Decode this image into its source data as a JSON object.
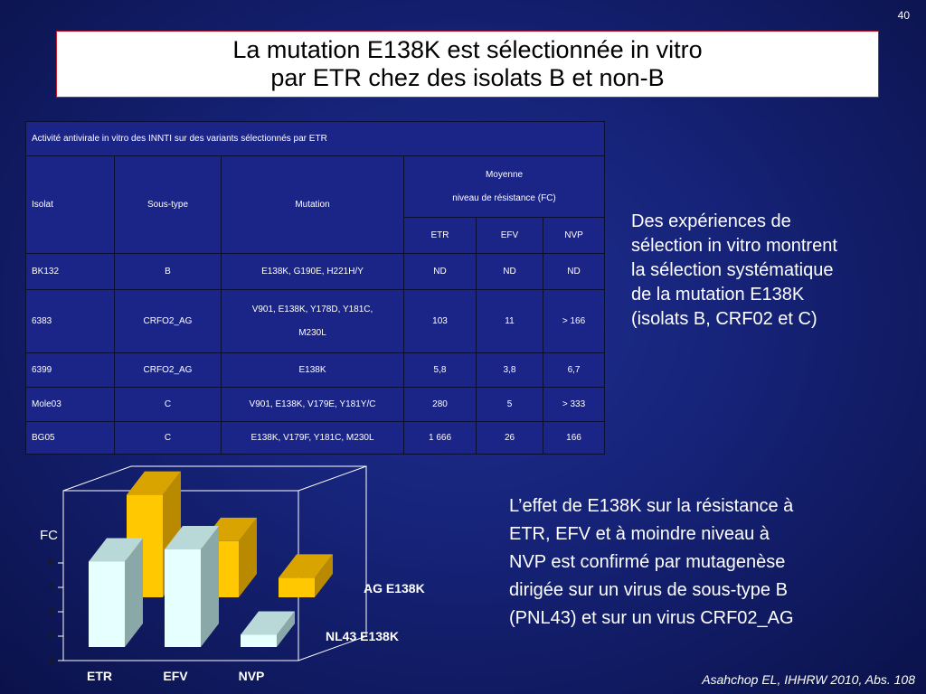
{
  "page_number": "40",
  "title": {
    "line1": "La mutation E138K est sélectionnée in vitro",
    "line2": "par ETR chez des isolats B et non-B"
  },
  "table": {
    "caption": "Activité antivirale in vitro des INNTI sur des variants sélectionnés par ETR",
    "headers": {
      "isolat": "Isolat",
      "sous_type": "Sous-type",
      "mutation": "Mutation",
      "moyenne_line1": "Moyenne",
      "moyenne_line2": "niveau de résistance (FC)",
      "etr": "ETR",
      "efv": "EFV",
      "nvp": "NVP"
    },
    "rows": [
      {
        "isolat": "BK132",
        "sous_type": "B",
        "mutation": "E138K, G190E, H221H/Y",
        "etr": "ND",
        "efv": "ND",
        "nvp": "ND"
      },
      {
        "isolat": "6383",
        "sous_type": "CRFO2_AG",
        "mutation_line1": "V901, E138K, Y178D, Y181C,",
        "mutation_line2": "M230L",
        "etr": "103",
        "efv": "11",
        "nvp": "> 166"
      },
      {
        "isolat": "6399",
        "sous_type": "CRFO2_AG",
        "mutation": "E138K",
        "etr": "5,8",
        "efv": "3,8",
        "nvp": "6,7"
      },
      {
        "isolat": "Mole03",
        "sous_type": "C",
        "mutation": "V901, E138K, V179E, Y181Y/C",
        "etr": "280",
        "efv": "5",
        "nvp": "> 333"
      },
      {
        "isolat": "BG05",
        "sous_type": "C",
        "mutation": "E138K, V179F, Y181C, M230L",
        "etr": "1 666",
        "efv": "26",
        "nvp": "166"
      }
    ]
  },
  "text_right_1": {
    "lines": [
      "Des expériences de",
      "sélection in vitro montrent",
      "la sélection systématique",
      "de la mutation E138K",
      "(isolats B, CRF02 et C)"
    ]
  },
  "text_right_2": {
    "lines": [
      "L’effet de E138K sur la résistance à",
      "ETR, EFV et à moindre niveau à",
      "NVP est confirmé par mutagenèse",
      "dirigée sur un virus de sous-type B",
      "(PNL43) et sur un virus CRF02_AG"
    ]
  },
  "citation": "Asahchop EL, IHHRW 2010, Abs. 108",
  "colors": {
    "ag_bar_front": "#ffc800",
    "ag_bar_top": "#d9a400",
    "ag_bar_side": "#b98a00",
    "nl43_bar_front": "#e6ffff",
    "nl43_bar_top": "#b9d8d8",
    "nl43_bar_side": "#8aa8a8"
  },
  "chart_data": {
    "type": "bar",
    "subtype": "3d-clustered",
    "ylabel": "FC",
    "ylim": [
      1,
      5
    ],
    "yticks": [
      "1",
      "2",
      "3",
      "4",
      "5"
    ],
    "categories": [
      "ETR",
      "EFV",
      "NVP"
    ],
    "series": [
      {
        "name": "AG E138K",
        "values": [
          5.2,
          3.3,
          1.8
        ]
      },
      {
        "name": "NL43 E138K",
        "values": [
          4.5,
          5.0,
          1.5
        ]
      }
    ]
  }
}
